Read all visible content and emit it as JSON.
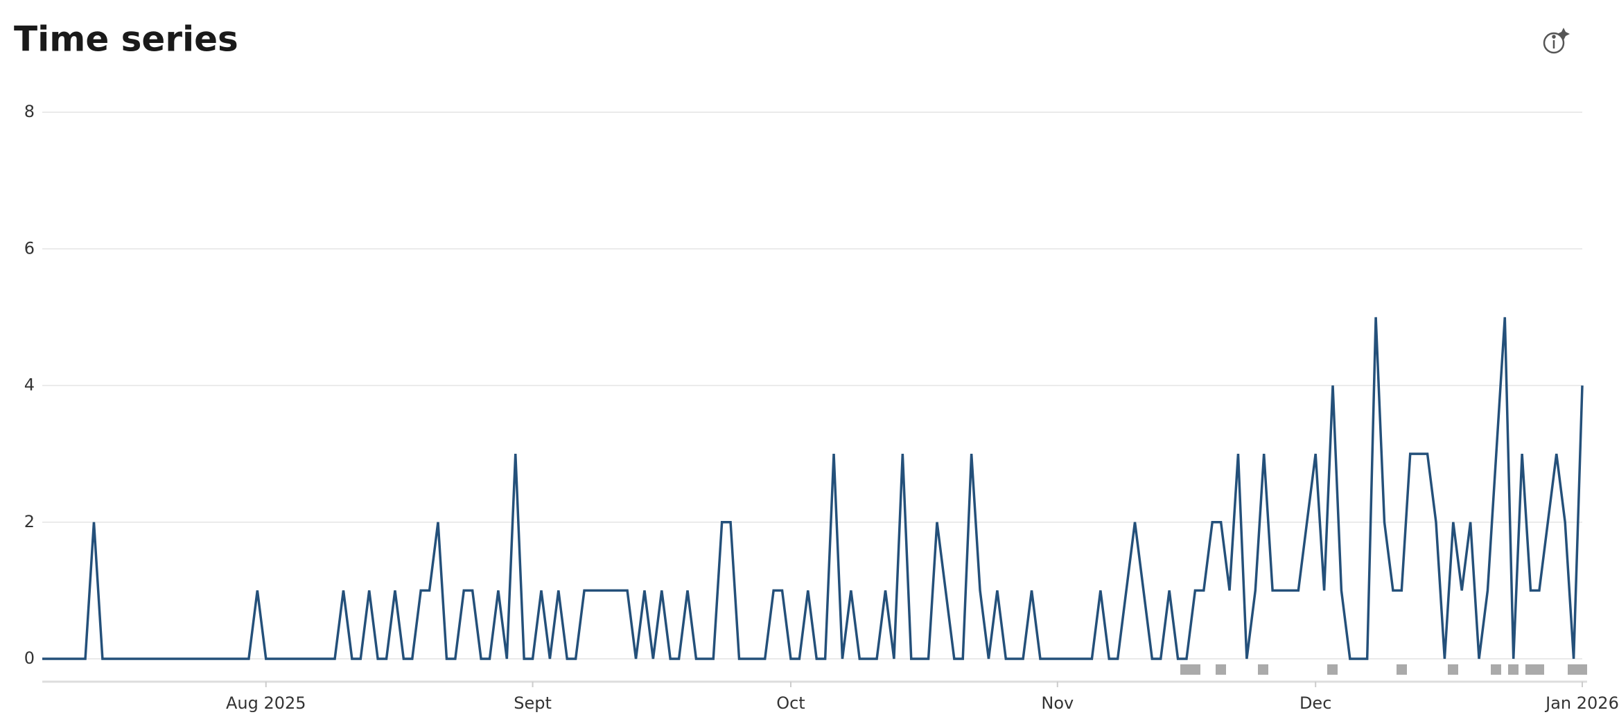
{
  "chart_data": {
    "type": "line",
    "title": "Time series",
    "values": [
      0,
      0,
      0,
      0,
      0,
      0,
      2,
      0,
      0,
      0,
      0,
      0,
      0,
      0,
      0,
      0,
      0,
      0,
      0,
      0,
      0,
      0,
      0,
      0,
      0,
      1,
      0,
      0,
      0,
      0,
      0,
      0,
      0,
      0,
      0,
      1,
      0,
      0,
      1,
      0,
      0,
      1,
      0,
      0,
      1,
      1,
      2,
      0,
      0,
      1,
      1,
      0,
      0,
      1,
      0,
      3,
      0,
      0,
      1,
      0,
      1,
      0,
      0,
      1,
      1,
      1,
      1,
      1,
      1,
      0,
      1,
      0,
      1,
      0,
      0,
      1,
      0,
      0,
      0,
      2,
      2,
      0,
      0,
      0,
      0,
      1,
      1,
      0,
      0,
      1,
      0,
      0,
      3,
      0,
      1,
      0,
      0,
      0,
      1,
      0,
      3,
      0,
      0,
      0,
      2,
      1,
      0,
      0,
      3,
      1,
      0,
      1,
      0,
      0,
      0,
      1,
      0,
      0,
      0,
      0,
      0,
      0,
      0,
      1,
      0,
      0,
      1,
      2,
      1,
      0,
      0,
      1,
      0,
      0,
      1,
      1,
      2,
      2,
      1,
      3,
      0,
      1,
      3,
      1,
      1,
      1,
      1,
      2,
      3,
      1,
      4,
      1,
      0,
      0,
      0,
      5,
      2,
      1,
      1,
      3,
      3,
      3,
      2,
      0,
      2,
      1,
      2,
      0,
      1,
      3,
      5,
      0,
      3,
      1,
      1,
      2,
      3,
      2,
      0,
      4
    ],
    "color": "#24507a",
    "xlim": [
      0,
      179
    ],
    "xticks": [
      {
        "value": 26,
        "label": "Aug 2025"
      },
      {
        "value": 57,
        "label": "Sept"
      },
      {
        "value": 87,
        "label": "Oct"
      },
      {
        "value": 118,
        "label": "Nov"
      },
      {
        "value": 148,
        "label": "Dec"
      },
      {
        "value": 179,
        "label": "Jan 2026"
      }
    ],
    "ylim": [
      0,
      8
    ],
    "yticks": [
      0,
      2,
      4,
      6,
      8
    ],
    "grid": true
  }
}
